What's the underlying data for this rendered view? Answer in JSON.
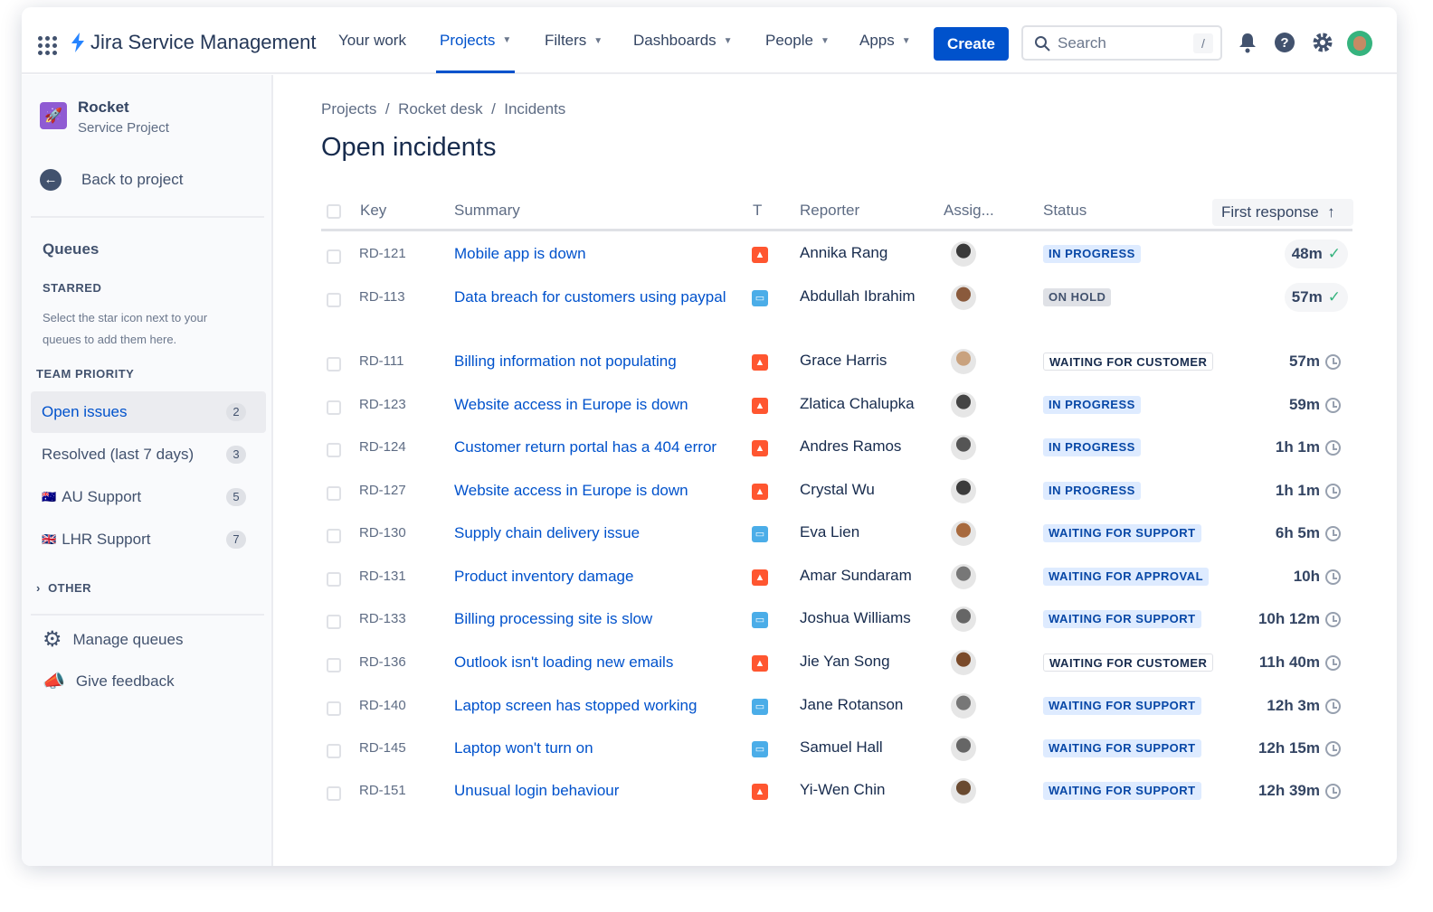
{
  "topnav": {
    "product": "Jira Service Management",
    "items": [
      {
        "label": "Your work",
        "dropdown": false
      },
      {
        "label": "Projects",
        "dropdown": true,
        "active": true
      },
      {
        "label": "Filters",
        "dropdown": true
      },
      {
        "label": "Dashboards",
        "dropdown": true
      },
      {
        "label": "People",
        "dropdown": true
      },
      {
        "label": "Apps",
        "dropdown": true
      }
    ],
    "create": "Create",
    "search_placeholder": "Search",
    "search_shortcut": "/"
  },
  "sidebar": {
    "project_name": "Rocket",
    "project_type": "Service Project",
    "back": "Back to project",
    "queues_title": "Queues",
    "starred_label": "STARRED",
    "starred_hint_1": "Select the star icon next to your",
    "starred_hint_2": "queues to add them here.",
    "team_priority": "TEAM PRIORITY",
    "queues": [
      {
        "label": "Open issues",
        "count": "2",
        "selected": true
      },
      {
        "label": "Resolved (last 7 days)",
        "count": "3"
      },
      {
        "label": "AU Support",
        "count": "5",
        "flag": "🇦🇺"
      },
      {
        "label": "LHR Support",
        "count": "7",
        "flag": "🇬🇧"
      }
    ],
    "other": "OTHER",
    "manage": "Manage queues",
    "feedback": "Give feedback"
  },
  "breadcrumb": {
    "a": "Projects",
    "b": "Rocket desk",
    "c": "Incidents",
    "sep": "/"
  },
  "page_title": "Open incidents",
  "table": {
    "headers": {
      "key": "Key",
      "summary": "Summary",
      "type": "T",
      "reporter": "Reporter",
      "assignee": "Assig...",
      "status": "Status",
      "first_response": "First response",
      "sort": "↑"
    },
    "rows": [
      {
        "key": "RD-121",
        "summary": "Mobile app is down",
        "type": "incident",
        "reporter": "Annika Rang",
        "status": "IN PROGRESS",
        "response": "48m",
        "met": true
      },
      {
        "key": "RD-113",
        "summary": "Data breach for customers using paypal",
        "type": "service",
        "reporter": "Abdullah Ibrahim",
        "status": "ON HOLD",
        "response": "57m",
        "met": true
      },
      {
        "key": "RD-111",
        "summary": "Billing information not populating",
        "type": "incident",
        "reporter": "Grace Harris",
        "status": "WAITING FOR CUSTOMER",
        "response": "57m"
      },
      {
        "key": "RD-123",
        "summary": "Website access in Europe is down",
        "type": "incident",
        "reporter": "Zlatica Chalupka",
        "status": "IN PROGRESS",
        "response": "59m"
      },
      {
        "key": "RD-124",
        "summary": "Customer return portal has a 404 error",
        "type": "incident",
        "reporter": "Andres Ramos",
        "status": "IN PROGRESS",
        "response": "1h 1m"
      },
      {
        "key": "RD-127",
        "summary": "Website access in Europe is down",
        "type": "incident",
        "reporter": "Crystal Wu",
        "status": "IN PROGRESS",
        "response": "1h 1m"
      },
      {
        "key": "RD-130",
        "summary": "Supply chain delivery issue",
        "type": "service",
        "reporter": "Eva Lien",
        "status": "WAITING FOR SUPPORT",
        "response": "6h 5m"
      },
      {
        "key": "RD-131",
        "summary": "Product inventory damage",
        "type": "incident",
        "reporter": "Amar Sundaram",
        "status": "WAITING FOR APPROVAL",
        "response": "10h"
      },
      {
        "key": "RD-133",
        "summary": "Billing processing site is slow",
        "type": "service",
        "reporter": "Joshua Williams",
        "status": "WAITING FOR SUPPORT",
        "response": "10h 12m"
      },
      {
        "key": "RD-136",
        "summary": "Outlook isn't loading new emails",
        "type": "incident",
        "reporter": "Jie Yan Song",
        "status": "WAITING FOR CUSTOMER",
        "response": "11h 40m"
      },
      {
        "key": "RD-140",
        "summary": "Laptop screen has stopped working",
        "type": "service",
        "reporter": "Jane Rotanson",
        "status": "WAITING FOR SUPPORT",
        "response": "12h 3m"
      },
      {
        "key": "RD-145",
        "summary": "Laptop won't turn on",
        "type": "service",
        "reporter": "Samuel Hall",
        "status": "WAITING FOR SUPPORT",
        "response": "12h 15m"
      },
      {
        "key": "RD-151",
        "summary": "Unusual login behaviour",
        "type": "incident",
        "reporter": "Yi-Wen Chin",
        "status": "WAITING FOR SUPPORT",
        "response": "12h 39m"
      }
    ]
  },
  "colors": {
    "primary": "#0052cc",
    "incident": "#ff5630",
    "service": "#4bade8",
    "in_progress_bg": "#deebff",
    "support_bg": "#deebff",
    "hold_bg": "#dfe1e6",
    "check": "#36b37e"
  }
}
